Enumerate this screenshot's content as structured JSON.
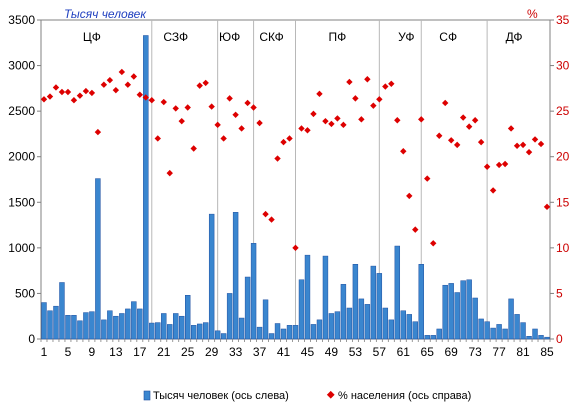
{
  "chart_data": {
    "type": "bar+scatter",
    "left_axis_title": "Тысяч человек",
    "right_axis_title": "%",
    "left_ylim": [
      0,
      3500
    ],
    "left_ticks": [
      "0",
      "500",
      "1000",
      "1500",
      "2000",
      "2500",
      "3000",
      "3500"
    ],
    "right_ylim": [
      0,
      35
    ],
    "right_ticks": [
      "0",
      "5",
      "10",
      "15",
      "20",
      "25",
      "30",
      "35"
    ],
    "x_tick_labels": [
      "1",
      "5",
      "9",
      "13",
      "17",
      "21",
      "25",
      "29",
      "33",
      "37",
      "41",
      "45",
      "49",
      "53",
      "57",
      "61",
      "65",
      "69",
      "73",
      "77",
      "81",
      "85"
    ],
    "x_tick_values": [
      1,
      5,
      9,
      13,
      17,
      21,
      25,
      29,
      33,
      37,
      41,
      45,
      49,
      53,
      57,
      61,
      65,
      69,
      73,
      77,
      81,
      85
    ],
    "grid": "vertical separators between districts",
    "districts": [
      {
        "label": "ЦФ",
        "center": 9
      },
      {
        "label": "СЗФ",
        "center": 23
      },
      {
        "label": "ЮФ",
        "center": 32
      },
      {
        "label": "СКФ",
        "center": 39
      },
      {
        "label": "ПФ",
        "center": 50
      },
      {
        "label": "УФ",
        "center": 61.5
      },
      {
        "label": "СФ",
        "center": 68.5
      },
      {
        "label": "ДФ",
        "center": 79.5
      }
    ],
    "separators": [
      18.5,
      29.5,
      35.5,
      42.5,
      56.5,
      63.5,
      74.5
    ],
    "series": [
      {
        "name": "Тысяч человек (ось слева)",
        "type": "bar",
        "axis": "left",
        "color": "#3a86cf",
        "values": [
          400,
          310,
          360,
          620,
          260,
          260,
          200,
          290,
          300,
          1760,
          210,
          310,
          250,
          280,
          330,
          410,
          330,
          3330,
          175,
          180,
          280,
          160,
          280,
          250,
          480,
          150,
          165,
          180,
          1370,
          90,
          60,
          500,
          1390,
          230,
          680,
          1050,
          130,
          430,
          60,
          170,
          110,
          150,
          150,
          650,
          920,
          160,
          210,
          910,
          280,
          300,
          600,
          340,
          820,
          440,
          380,
          800,
          720,
          340,
          210,
          1020,
          310,
          270,
          190,
          820,
          40,
          40,
          110,
          590,
          610,
          510,
          640,
          650,
          450,
          220,
          190,
          120,
          160,
          110,
          440,
          270,
          180,
          30,
          110,
          40,
          20
        ]
      },
      {
        "name": "% населения (ось справа)",
        "type": "scatter",
        "axis": "right",
        "color": "#dd0000",
        "values": [
          26.3,
          26.6,
          27.6,
          27.1,
          27.1,
          26.2,
          26.7,
          27.2,
          27.0,
          22.7,
          27.9,
          28.4,
          27.3,
          29.3,
          27.9,
          28.8,
          26.8,
          26.5,
          26.2,
          22.0,
          26.0,
          18.2,
          25.3,
          23.9,
          25.4,
          20.9,
          27.8,
          28.1,
          25.5,
          23.5,
          22.0,
          26.4,
          24.6,
          23.1,
          25.9,
          25.4,
          23.7,
          13.7,
          13.1,
          19.8,
          21.6,
          22.0,
          10.0,
          23.1,
          22.9,
          24.7,
          26.9,
          23.9,
          23.6,
          24.2,
          23.5,
          28.2,
          26.4,
          24.1,
          28.5,
          25.6,
          26.3,
          27.7,
          28.0,
          24.0,
          20.6,
          15.7,
          12.0,
          24.1,
          17.6,
          10.5,
          22.3,
          25.9,
          21.8,
          21.3,
          24.3,
          23.3,
          24.0,
          21.6,
          18.9,
          16.3,
          19.1,
          19.2,
          23.1,
          21.2,
          21.3,
          20.5,
          21.9,
          21.4,
          14.5
        ]
      }
    ],
    "legend": {
      "placement": "bottom-center",
      "items": [
        "Тысяч человек (ось слева)",
        "% населения (ось справа)"
      ]
    }
  }
}
